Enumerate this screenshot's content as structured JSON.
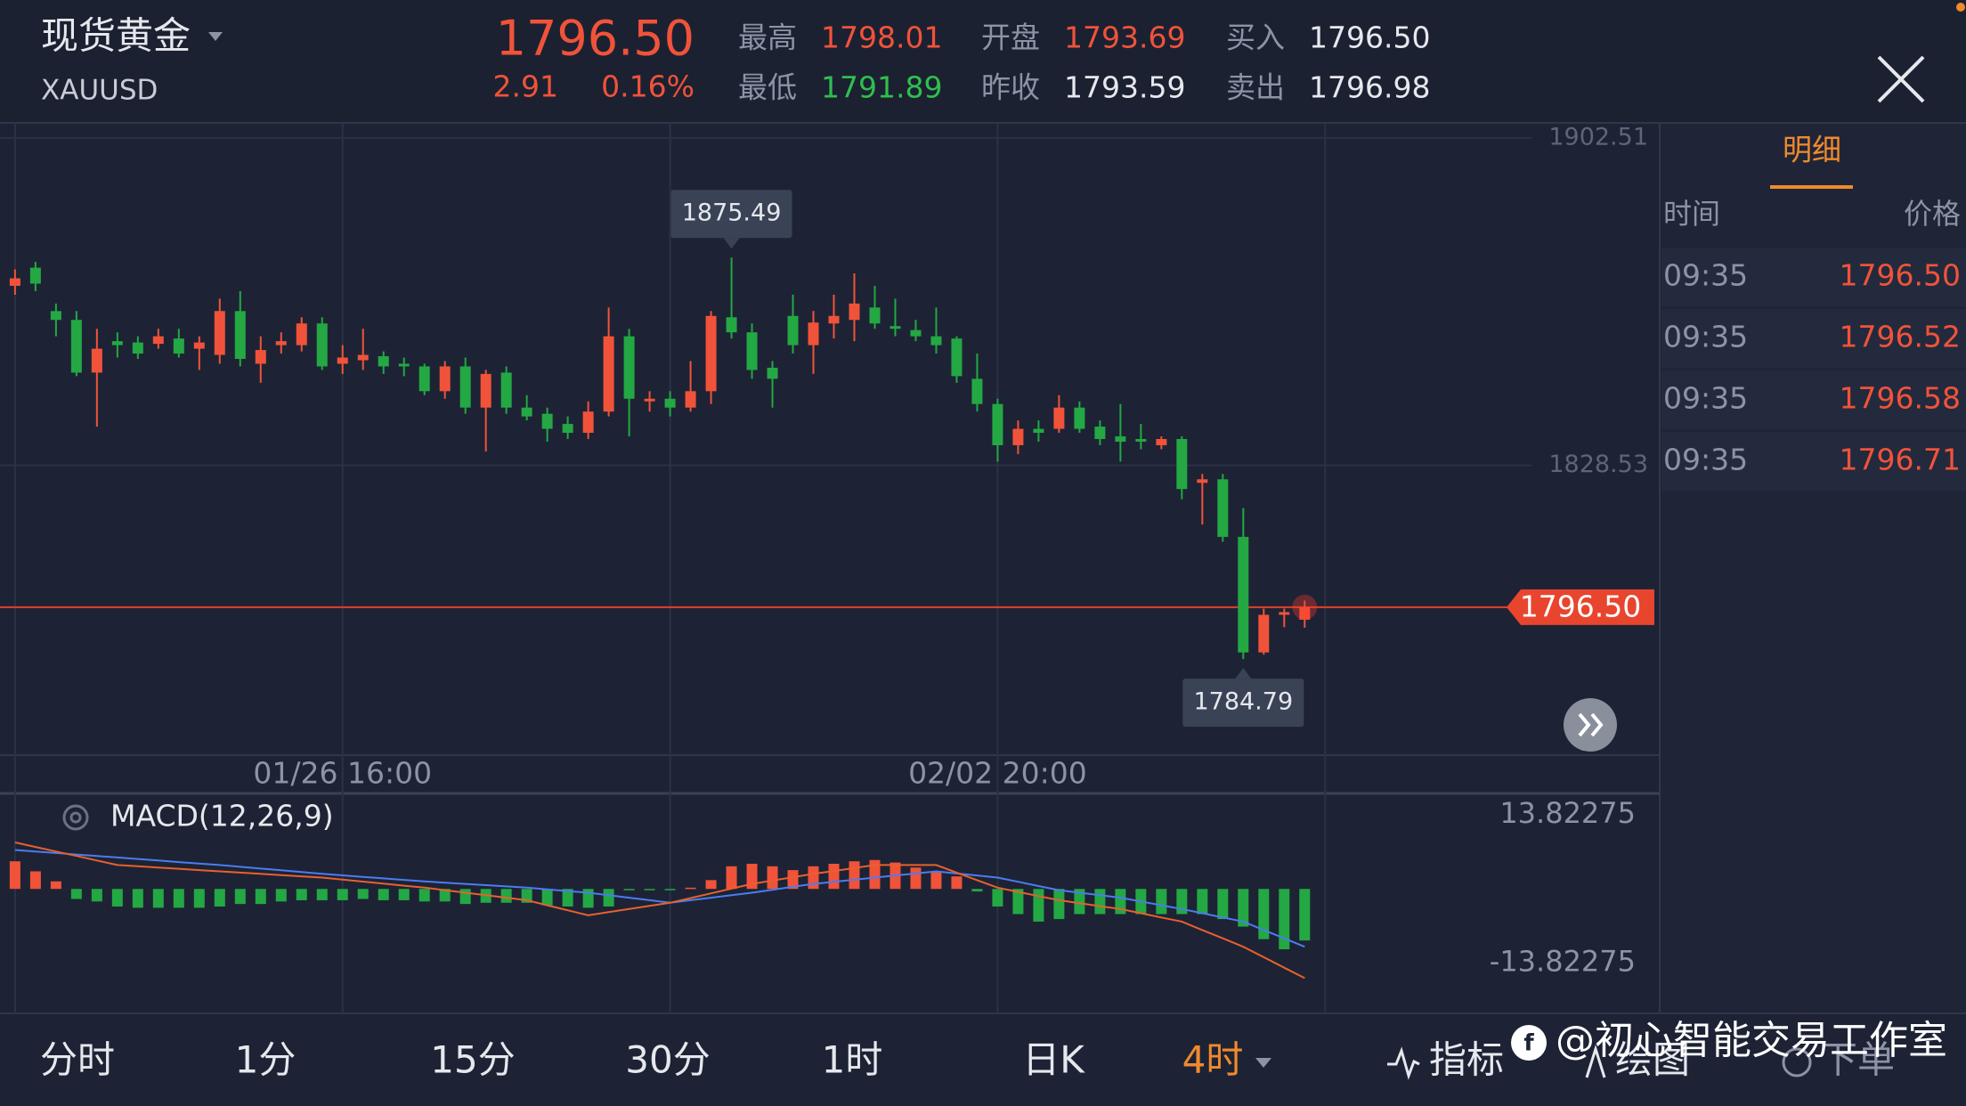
{
  "header": {
    "name": "现货黄金",
    "symbol": "XAUUSD",
    "price": "1796.50",
    "change": "2.91",
    "change_pct": "0.16%",
    "stats": [
      {
        "label": "最高",
        "value": "1798.01"
      },
      {
        "label": "最低",
        "value": "1791.89"
      },
      {
        "label": "开盘",
        "value": "1793.69"
      },
      {
        "label": "昨收",
        "value": "1793.59"
      },
      {
        "label": "买入",
        "value": "1796.50"
      },
      {
        "label": "卖出",
        "value": "1796.98"
      }
    ]
  },
  "chart_data": [
    {
      "type": "candlestick",
      "up_color": "#f0533a",
      "down_color": "#23a844",
      "categories": [
        null,
        null,
        null,
        null,
        null,
        null,
        null,
        null,
        null,
        null,
        null,
        null,
        null,
        null,
        null,
        null,
        "01/26 16:00",
        null,
        null,
        null,
        null,
        null,
        null,
        null,
        null,
        null,
        null,
        null,
        null,
        null,
        null,
        null,
        null,
        null,
        null,
        null,
        null,
        null,
        null,
        null,
        null,
        null,
        null,
        null,
        null,
        null,
        null,
        null,
        "02/02 20:00",
        null,
        null,
        null,
        null,
        null,
        null,
        null,
        null,
        null,
        null,
        null,
        null,
        null,
        null,
        null
      ],
      "open": [
        1869.1,
        1873.2,
        1863.4,
        1861.4,
        1849.5,
        1856.6,
        1856.3,
        1856.0,
        1857.2,
        1854.9,
        1853.5,
        1863.4,
        1851.5,
        1855.7,
        1855.7,
        1860.6,
        1851.5,
        1852.3,
        1853.2,
        1851.5,
        1850.9,
        1845.3,
        1850.9,
        1841.6,
        1849.5,
        1841.6,
        1840.2,
        1837.9,
        1835.9,
        1840.7,
        1857.7,
        1843.0,
        1843.6,
        1841.6,
        1845.3,
        1862.0,
        1858.6,
        1850.6,
        1862.3,
        1855.7,
        1860.6,
        1861.4,
        1864.2,
        1860.0,
        1859.1,
        1857.7,
        1857.2,
        1848.1,
        1842.4,
        1833.1,
        1836.8,
        1836.8,
        1841.6,
        1837.3,
        1835.1,
        1834.5,
        1833.1,
        1834.5,
        1824.6,
        1825.4,
        1812.4,
        1786.3,
        1794.8,
        1793.69
      ],
      "high": [
        1872.8,
        1874.5,
        1865.1,
        1863.4,
        1859.4,
        1858.6,
        1857.7,
        1859.4,
        1859.4,
        1857.7,
        1866.2,
        1867.9,
        1857.7,
        1858.6,
        1862.0,
        1862.0,
        1855.7,
        1859.4,
        1854.3,
        1852.9,
        1851.5,
        1852.1,
        1852.9,
        1850.1,
        1850.9,
        1844.4,
        1841.6,
        1839.6,
        1843.0,
        1864.2,
        1859.4,
        1845.3,
        1845.3,
        1852.1,
        1863.4,
        1875.49,
        1860.6,
        1852.1,
        1867.1,
        1863.4,
        1867.1,
        1871.9,
        1869.1,
        1866.2,
        1861.4,
        1864.2,
        1857.7,
        1853.8,
        1843.6,
        1838.7,
        1838.7,
        1844.4,
        1843.0,
        1838.7,
        1842.4,
        1837.9,
        1835.1,
        1835.1,
        1826.6,
        1826.6,
        1818.9,
        1796.2,
        1796.2,
        1798.01
      ],
      "low": [
        1867.1,
        1867.9,
        1857.7,
        1848.7,
        1837.3,
        1852.9,
        1852.6,
        1854.9,
        1852.9,
        1850.1,
        1851.5,
        1850.9,
        1847.2,
        1853.8,
        1854.3,
        1850.1,
        1849.2,
        1850.1,
        1849.2,
        1848.7,
        1844.4,
        1843.6,
        1840.2,
        1831.7,
        1840.2,
        1838.7,
        1833.9,
        1834.5,
        1834.5,
        1839.6,
        1835.1,
        1840.7,
        1839.6,
        1840.7,
        1842.4,
        1857.2,
        1848.1,
        1841.6,
        1853.8,
        1849.2,
        1857.2,
        1856.6,
        1859.4,
        1857.7,
        1856.6,
        1853.8,
        1847.2,
        1840.7,
        1829.4,
        1831.1,
        1833.9,
        1835.9,
        1835.9,
        1833.1,
        1829.4,
        1832.2,
        1832.2,
        1820.9,
        1815.2,
        1811.3,
        1784.79,
        1785.8,
        1792.0,
        1791.89
      ],
      "close": [
        1870.8,
        1869.6,
        1861.4,
        1849.5,
        1854.9,
        1855.7,
        1853.8,
        1857.7,
        1853.8,
        1856.3,
        1863.4,
        1852.6,
        1854.6,
        1856.6,
        1860.6,
        1850.9,
        1852.9,
        1853.5,
        1850.9,
        1850.9,
        1845.3,
        1850.9,
        1841.6,
        1849.2,
        1841.6,
        1839.6,
        1836.8,
        1835.9,
        1840.7,
        1857.7,
        1843.6,
        1843.6,
        1841.6,
        1845.3,
        1862.3,
        1858.6,
        1850.1,
        1848.1,
        1855.7,
        1860.8,
        1862.3,
        1865.1,
        1860.6,
        1859.4,
        1857.7,
        1855.7,
        1848.7,
        1842.4,
        1833.1,
        1836.8,
        1835.9,
        1841.6,
        1836.8,
        1834.5,
        1833.9,
        1833.9,
        1834.5,
        1823.2,
        1825.4,
        1812.4,
        1786.3,
        1794.8,
        1795.4,
        1796.5
      ],
      "ylim": [
        1763.1,
        1905.9
      ],
      "yticks": [
        1828.53,
        1902.51
      ],
      "grid": true,
      "current_price": {
        "value": 1796.5,
        "label": "1796.50"
      },
      "high_label": 1875.49,
      "low_label": 1784.79
    },
    {
      "type": "macd",
      "title": "MACD(12,26,9)",
      "up_color": "#f0533a",
      "down_color": "#23a844",
      "histogram": [
        5.15,
        3.28,
        1.41,
        -1.87,
        -2.34,
        -3.28,
        -3.51,
        -3.51,
        -3.51,
        -3.51,
        -3.28,
        -2.81,
        -2.81,
        -2.34,
        -2.11,
        -2.11,
        -2.11,
        -1.87,
        -2.11,
        -2.11,
        -2.34,
        -2.34,
        -2.81,
        -2.58,
        -2.58,
        -2.58,
        -3.05,
        -3.28,
        -3.51,
        -3.28,
        -0.23,
        -0.23,
        -0.23,
        0.23,
        1.64,
        4.22,
        4.69,
        4.22,
        3.51,
        4.22,
        4.69,
        5.15,
        5.39,
        4.92,
        3.98,
        3.28,
        2.34,
        -0.47,
        -3.28,
        -4.69,
        -6.09,
        -5.62,
        -4.69,
        -4.69,
        -4.69,
        -4.69,
        -4.69,
        -4.69,
        -4.69,
        -5.62,
        -7.03,
        -9.37,
        -11.25,
        -9.61
      ],
      "lines": [
        {
          "color": "#4b7cf0",
          "values": [
            7.26,
            6.98,
            6.7,
            6.42,
            6.14,
            5.86,
            5.58,
            5.3,
            5.01,
            4.73,
            4.45,
            4.12,
            3.79,
            3.47,
            3.14,
            2.81,
            2.53,
            2.25,
            1.97,
            1.69,
            1.41,
            1.17,
            0.94,
            0.7,
            0.47,
            0.23,
            -0.08,
            -0.39,
            -0.7,
            -1.17,
            -1.64,
            -2.11,
            -2.58,
            -2.11,
            -1.64,
            -1.17,
            -0.7,
            -0.16,
            0.4,
            0.94,
            1.33,
            1.71,
            2.11,
            2.51,
            2.88,
            3.28,
            2.88,
            2.51,
            2.11,
            1.33,
            0.54,
            -0.23,
            -0.7,
            -1.17,
            -1.64,
            -2.34,
            -3.05,
            -3.75,
            -4.52,
            -5.32,
            -6.09,
            -7.66,
            -9.21,
            -10.78
          ]
        },
        {
          "color": "#e8602e",
          "values": [
            8.67,
            7.83,
            6.98,
            6.14,
            5.3,
            4.45,
            4.22,
            3.98,
            3.75,
            3.51,
            3.28,
            3.05,
            2.81,
            2.58,
            2.34,
            2.11,
            1.73,
            1.36,
            0.98,
            0.61,
            0.23,
            -0.23,
            -0.7,
            -1.17,
            -1.64,
            -2.11,
            -3.05,
            -3.98,
            -4.92,
            -4.33,
            -3.75,
            -3.16,
            -2.58,
            -1.71,
            -0.82,
            0.05,
            0.94,
            1.57,
            2.18,
            2.81,
            3.35,
            3.91,
            4.45,
            4.45,
            4.45,
            4.45,
            3.05,
            1.64,
            0.23,
            -0.54,
            -1.34,
            -2.11,
            -2.65,
            -3.21,
            -3.75,
            -4.52,
            -5.32,
            -6.09,
            -7.66,
            -9.21,
            -10.78,
            -12.73,
            -14.69,
            -16.63
          ]
        }
      ],
      "ylim": [
        -23.2,
        17.8
      ],
      "yticks": [
        13.82275,
        -13.82275
      ]
    }
  ],
  "detail": {
    "tab": "明细",
    "columns": [
      "时间",
      "价格"
    ],
    "rows": [
      [
        "09:35",
        "1796.50"
      ],
      [
        "09:35",
        "1796.52"
      ],
      [
        "09:35",
        "1796.58"
      ],
      [
        "09:35",
        "1796.71"
      ]
    ]
  },
  "toolbar": {
    "periods": [
      "分时",
      "1分",
      "15分",
      "30分",
      "1时",
      "日K",
      "4时"
    ],
    "tools": [
      "指标",
      "绘图",
      "下单"
    ]
  },
  "watermark": "@初心智能交易工作室"
}
